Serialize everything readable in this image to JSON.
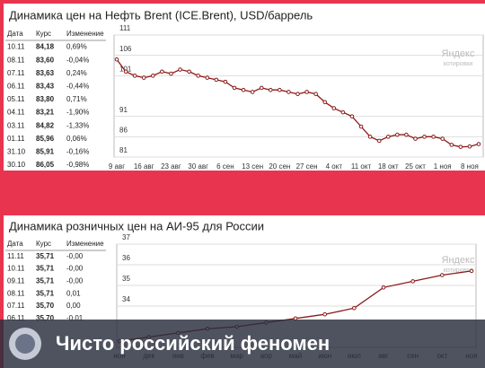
{
  "banner": "Чисто российский феномен",
  "watermark": {
    "name": "Яндекс",
    "sub": "котировки"
  },
  "tables": [
    {
      "columns": [
        "Дата",
        "Курс",
        "Изменение"
      ],
      "rows": [
        [
          "10.11",
          "84,18",
          "0,69%"
        ],
        [
          "08.11",
          "83,60",
          "-0,04%"
        ],
        [
          "07.11",
          "83,63",
          "0,24%"
        ],
        [
          "06.11",
          "83,43",
          "-0,44%"
        ],
        [
          "05.11",
          "83,80",
          "0,71%"
        ],
        [
          "04.11",
          "83,21",
          "-1,90%"
        ],
        [
          "03.11",
          "84,82",
          "-1,33%"
        ],
        [
          "01.11",
          "85,96",
          "0,06%"
        ],
        [
          "31.10",
          "85,91",
          "-0,16%"
        ],
        [
          "30.10",
          "86,05",
          "-0,98%"
        ]
      ]
    },
    {
      "columns": [
        "Дата",
        "Курс",
        "Изменение"
      ],
      "rows": [
        [
          "11.11",
          "35,71",
          "-0,00"
        ],
        [
          "10.11",
          "35,71",
          "-0,00"
        ],
        [
          "09.11",
          "35,71",
          "-0,00"
        ],
        [
          "08.11",
          "35,71",
          "0,01"
        ],
        [
          "07.11",
          "35,70",
          "0,00"
        ],
        [
          "06.11",
          "35,70",
          "-0,01"
        ]
      ]
    }
  ],
  "chart_data": [
    {
      "type": "line",
      "title": "Динамика цен на Нефть Brent (ICE.Brent), USD/баррель",
      "color": "#8b1a1a",
      "grid": true,
      "ylim": [
        81,
        111
      ],
      "yticks": [
        111,
        106,
        101,
        91,
        86,
        81
      ],
      "categories": [
        "9 авг",
        null,
        null,
        "16 авг",
        null,
        null,
        "23 авг",
        null,
        null,
        "30 авг",
        null,
        null,
        "6 сен",
        null,
        null,
        "13 сен",
        null,
        null,
        "20 сен",
        null,
        null,
        "27 сен",
        null,
        null,
        "4 окт",
        null,
        null,
        "11 окт",
        null,
        null,
        "18 окт",
        null,
        null,
        "25 окт",
        null,
        null,
        "1 ноя",
        null,
        null,
        "8 ноя",
        null
      ],
      "values": [
        105,
        102,
        101,
        100.5,
        101,
        102,
        101.5,
        102.5,
        102,
        101,
        100.5,
        100,
        99.5,
        98,
        97.5,
        97,
        98,
        97.5,
        97.5,
        97,
        96.5,
        97,
        96.5,
        94.5,
        93,
        92,
        91,
        88.5,
        86,
        85,
        86,
        86.5,
        86.5,
        85.5,
        86,
        86,
        85.5,
        84,
        83.5,
        83.6,
        84.2
      ]
    },
    {
      "type": "line",
      "title": "Динамика розничных цен на АИ-95 для России",
      "color": "#8b1a1a",
      "grid": true,
      "ylim": [
        32,
        37
      ],
      "yticks": [
        37,
        36,
        35,
        34
      ],
      "categories": [
        "ноя",
        "дек",
        "янв",
        "фев",
        "мар",
        "апр",
        "май",
        "июн",
        "июл",
        "авг",
        "сен",
        "окт",
        "ноя"
      ],
      "values": [
        32.3,
        32.5,
        32.7,
        32.9,
        33.0,
        33.2,
        33.4,
        33.6,
        33.9,
        34.9,
        35.2,
        35.5,
        35.7
      ]
    }
  ]
}
